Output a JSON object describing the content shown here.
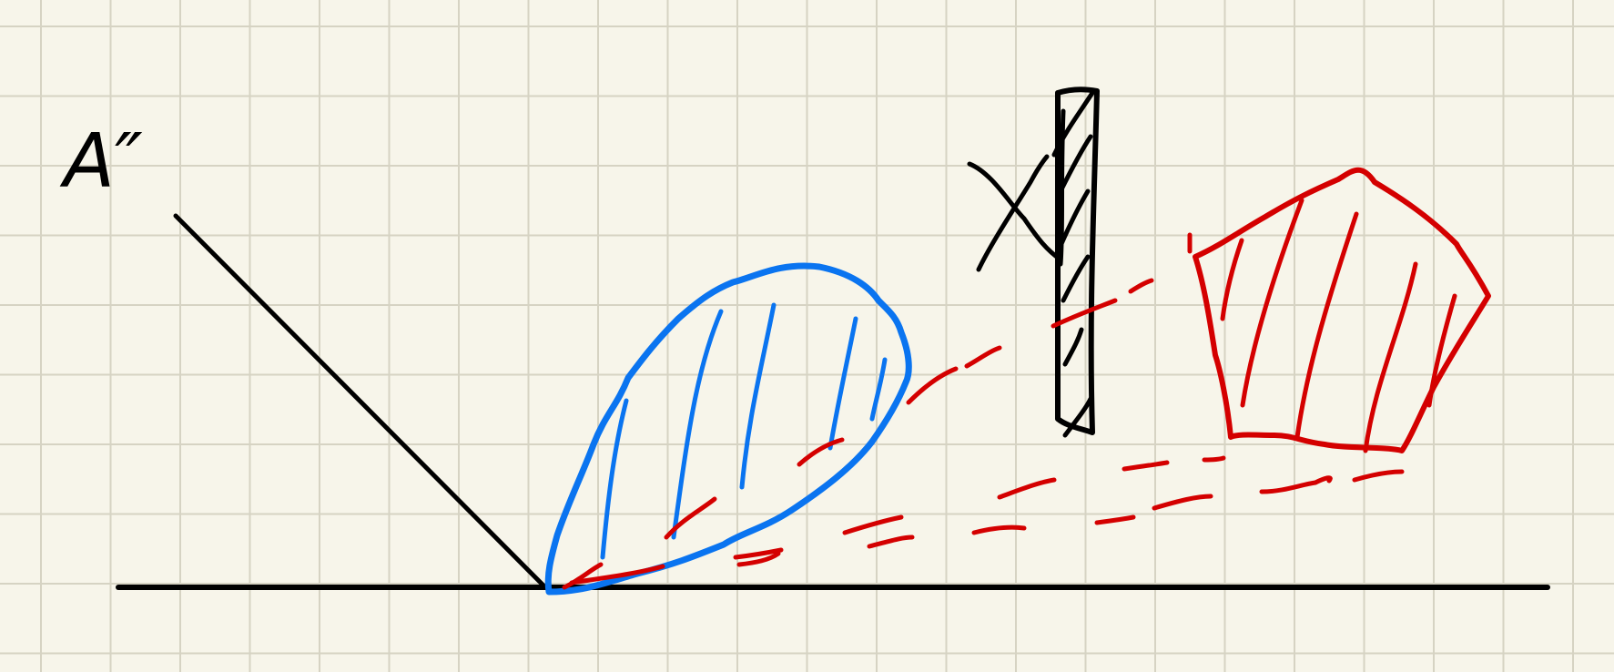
{
  "sketch": {
    "annotation_label": "A″"
  },
  "colors": {
    "paper": "#f7f5ea",
    "grid": "#d6d3c3",
    "black_ink": "#000000",
    "blue_ink": "#0a74f0",
    "red_ink": "#d40000"
  }
}
